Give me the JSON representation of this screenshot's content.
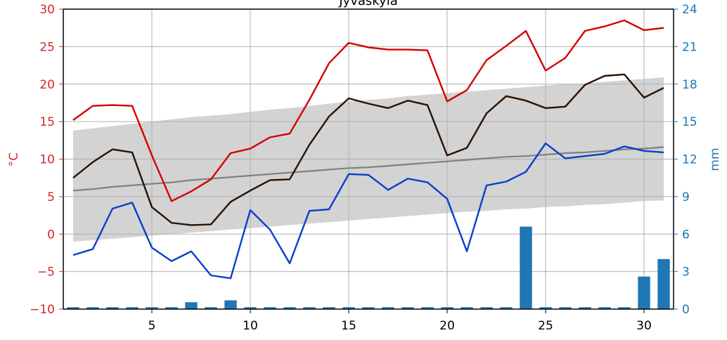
{
  "chart_data": {
    "type": "line",
    "title": "Jyväskylä",
    "ylabel": "°C",
    "y2label": "mm",
    "xlim": [
      0.5,
      31.5
    ],
    "ylim": [
      -10,
      30
    ],
    "y2lim": [
      0,
      24
    ],
    "x": [
      1,
      2,
      3,
      4,
      5,
      6,
      7,
      8,
      9,
      10,
      11,
      12,
      13,
      14,
      15,
      16,
      17,
      18,
      19,
      20,
      21,
      22,
      23,
      24,
      25,
      26,
      27,
      28,
      29,
      30,
      31
    ],
    "x_ticks": [
      5,
      10,
      15,
      20,
      25,
      30
    ],
    "y_ticks": [
      -10,
      -5,
      0,
      5,
      10,
      15,
      20,
      25,
      30
    ],
    "y2_ticks": [
      0,
      3,
      6,
      9,
      12,
      15,
      18,
      21,
      24
    ],
    "grid": true,
    "colors": {
      "left_axis": "#d62728",
      "right_axis": "#1f77b4",
      "band": "#d3d3d3",
      "mean_line": "#808080",
      "max_line": "#d40000",
      "avg_line": "#2a1200",
      "min_line": "#0a3fcc",
      "bars": "#1f77b4"
    },
    "series": [
      {
        "role": "normal-range-upper",
        "axis": "left",
        "values": [
          13.8,
          14.1,
          14.4,
          14.7,
          15.0,
          15.3,
          15.6,
          15.8,
          16.0,
          16.3,
          16.6,
          16.8,
          17.1,
          17.4,
          17.7,
          17.9,
          18.1,
          18.4,
          18.6,
          18.8,
          19.0,
          19.2,
          19.4,
          19.6,
          19.8,
          20.0,
          20.1,
          20.3,
          20.5,
          20.7,
          20.9
        ]
      },
      {
        "role": "normal-range-lower",
        "axis": "left",
        "values": [
          -1.0,
          -0.8,
          -0.6,
          -0.4,
          -0.2,
          0.0,
          0.2,
          0.4,
          0.6,
          0.8,
          1.0,
          1.2,
          1.4,
          1.6,
          1.8,
          2.0,
          2.2,
          2.4,
          2.6,
          2.8,
          3.0,
          3.1,
          3.3,
          3.4,
          3.6,
          3.7,
          3.9,
          4.0,
          4.2,
          4.4,
          4.5
        ]
      },
      {
        "role": "normal-mean",
        "axis": "left",
        "values": [
          5.8,
          6.0,
          6.3,
          6.5,
          6.7,
          6.9,
          7.2,
          7.4,
          7.6,
          7.8,
          8.0,
          8.2,
          8.4,
          8.6,
          8.8,
          8.9,
          9.1,
          9.3,
          9.5,
          9.7,
          9.9,
          10.1,
          10.3,
          10.4,
          10.6,
          10.8,
          10.9,
          11.1,
          11.3,
          11.4,
          11.6
        ]
      },
      {
        "role": "daily-max",
        "axis": "left",
        "values": [
          15.2,
          17.1,
          17.2,
          17.1,
          10.5,
          4.4,
          5.7,
          7.3,
          10.8,
          11.4,
          12.9,
          13.4,
          17.9,
          22.8,
          25.5,
          24.9,
          24.6,
          24.6,
          24.5,
          17.7,
          19.2,
          23.2,
          25.1,
          27.1,
          21.8,
          23.5,
          27.1,
          27.7,
          28.5,
          27.2,
          27.5
        ]
      },
      {
        "role": "daily-mean",
        "axis": "left",
        "values": [
          7.5,
          9.6,
          11.3,
          10.9,
          3.6,
          1.5,
          1.2,
          1.3,
          4.3,
          5.8,
          7.2,
          7.3,
          11.9,
          15.7,
          18.1,
          17.4,
          16.8,
          17.8,
          17.2,
          10.5,
          11.5,
          16.1,
          18.4,
          17.8,
          16.8,
          17.0,
          19.9,
          21.1,
          21.3,
          18.2,
          19.5
        ]
      },
      {
        "role": "daily-min",
        "axis": "left",
        "values": [
          -2.8,
          -2.0,
          3.4,
          4.2,
          -1.8,
          -3.6,
          -2.3,
          -5.5,
          -5.9,
          3.2,
          0.6,
          -3.9,
          3.1,
          3.3,
          8.0,
          7.9,
          5.9,
          7.4,
          6.9,
          4.7,
          -2.3,
          6.5,
          7.0,
          8.3,
          12.1,
          10.1,
          10.4,
          10.7,
          11.7,
          11.1,
          10.9
        ]
      },
      {
        "role": "daily-precipitation",
        "axis": "right",
        "type": "bar",
        "values": [
          0.15,
          0.15,
          0.15,
          0.15,
          0.15,
          0.15,
          0.55,
          0.15,
          0.7,
          0.15,
          0.15,
          0.15,
          0.15,
          0.15,
          0.15,
          0.15,
          0.15,
          0.15,
          0.15,
          0.15,
          0.15,
          0.15,
          0.15,
          6.6,
          0.15,
          0.15,
          0.15,
          0.15,
          0.15,
          2.6,
          4.0
        ]
      }
    ]
  }
}
